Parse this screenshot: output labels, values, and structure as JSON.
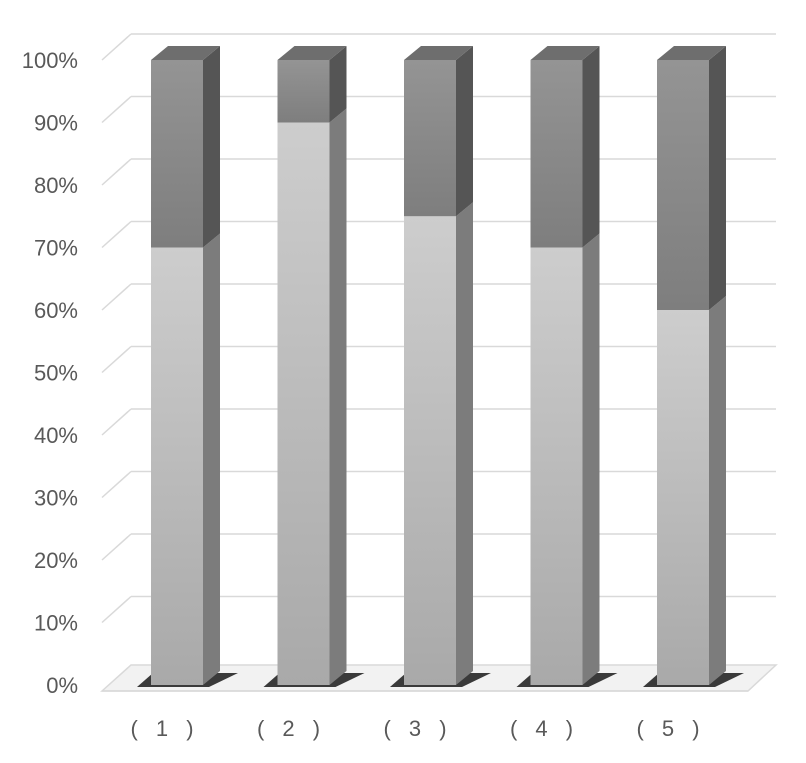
{
  "chart_data": {
    "type": "bar",
    "stacked": true,
    "percent": true,
    "three_d": true,
    "categories": [
      "( 1 )",
      "( 2 )",
      "( 3 )",
      "( 4 )",
      "( 5 )"
    ],
    "series": [
      {
        "values": [
          70,
          90,
          75,
          70,
          60
        ],
        "color": "#c4c4c4"
      },
      {
        "values": [
          30,
          10,
          25,
          30,
          40
        ],
        "color": "#8c8c8c"
      }
    ],
    "y_ticks": [
      "0%",
      "10%",
      "20%",
      "30%",
      "40%",
      "50%",
      "60%",
      "70%",
      "80%",
      "90%",
      "100%"
    ],
    "ylim": [
      0,
      100
    ],
    "grid": true,
    "legend": "none"
  }
}
